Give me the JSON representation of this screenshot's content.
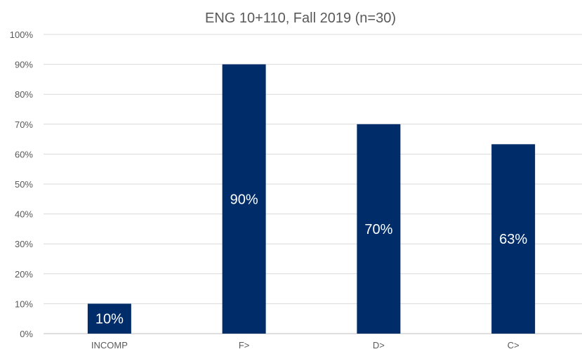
{
  "chart_data": {
    "type": "bar",
    "title": "ENG 10+110, Fall 2019 (n=30)",
    "categories": [
      "INCOMP",
      "F>",
      "D>",
      "C>"
    ],
    "values": [
      10,
      90,
      70,
      63.3
    ],
    "data_labels": [
      "10%",
      "90%",
      "70%",
      "63%"
    ],
    "ylim": [
      0,
      100
    ],
    "yticks": [
      0,
      10,
      20,
      30,
      40,
      50,
      60,
      70,
      80,
      90,
      100
    ],
    "ytick_labels": [
      "0%",
      "10%",
      "20%",
      "30%",
      "40%",
      "50%",
      "60%",
      "70%",
      "80%",
      "90%",
      "100%"
    ],
    "xlabel": "",
    "ylabel": "",
    "grid": true,
    "legend": "none",
    "bar_color": "#002d6a"
  }
}
